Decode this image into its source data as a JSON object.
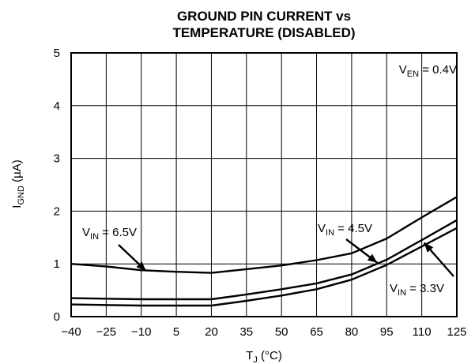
{
  "chart_data": {
    "type": "line",
    "title": [
      "GROUND PIN CURRENT vs",
      "TEMPERATURE (DISABLED)"
    ],
    "xlabel": {
      "main": "T",
      "sub": "J",
      "rest": " (°C)"
    },
    "ylabel": {
      "main": "I",
      "sub": "GND",
      "rest": " (µA)"
    },
    "xlim": [
      -40,
      125
    ],
    "ylim": [
      0,
      5
    ],
    "xticks": [
      "−40",
      "−25",
      "−10",
      "5",
      "20",
      "35",
      "50",
      "65",
      "80",
      "95",
      "110",
      "125"
    ],
    "yticks": [
      "0",
      "1",
      "2",
      "3",
      "4",
      "5"
    ],
    "grid": true,
    "condition": {
      "main": "V",
      "sub": "EN",
      "rest": " = 0.4V"
    },
    "series": [
      {
        "name": {
          "main": "V",
          "sub": "IN",
          "rest": " = 6.5V"
        },
        "x": [
          -40,
          -25,
          -10,
          5,
          20,
          35,
          50,
          65,
          80,
          95,
          110,
          125
        ],
        "y": [
          1.0,
          0.95,
          0.88,
          0.85,
          0.83,
          0.9,
          0.97,
          1.07,
          1.2,
          1.48,
          1.88,
          2.27
        ]
      },
      {
        "name": {
          "main": "V",
          "sub": "IN",
          "rest": " = 4.5V"
        },
        "x": [
          -40,
          -25,
          -10,
          5,
          20,
          35,
          50,
          65,
          80,
          95,
          110,
          125
        ],
        "y": [
          0.35,
          0.34,
          0.33,
          0.33,
          0.33,
          0.42,
          0.52,
          0.63,
          0.8,
          1.08,
          1.45,
          1.83
        ]
      },
      {
        "name": {
          "main": "V",
          "sub": "IN",
          "rest": " = 3.3V"
        },
        "x": [
          -40,
          -25,
          -10,
          5,
          20,
          35,
          50,
          65,
          80,
          95,
          110,
          125
        ],
        "y": [
          0.23,
          0.22,
          0.21,
          0.21,
          0.21,
          0.3,
          0.4,
          0.52,
          0.7,
          0.98,
          1.33,
          1.68
        ]
      }
    ]
  }
}
